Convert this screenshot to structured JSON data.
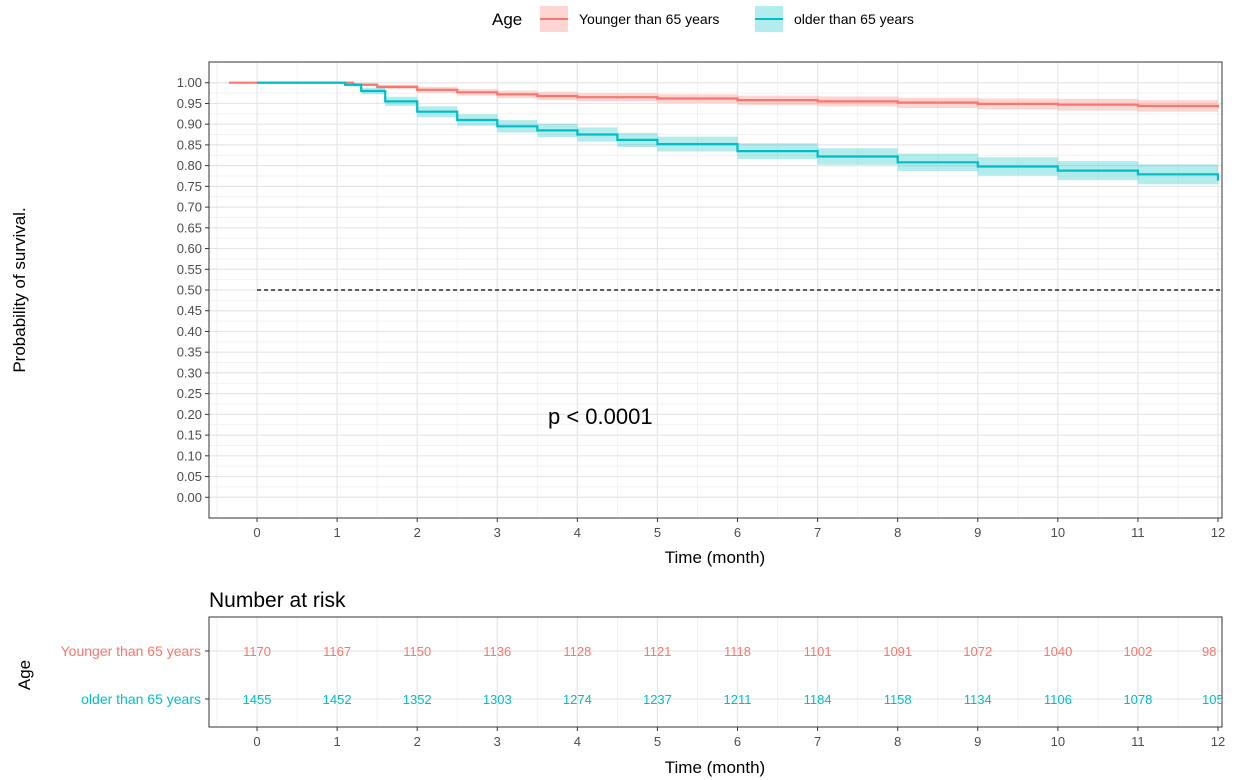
{
  "legend": {
    "title": "Age",
    "items": [
      {
        "label": "Younger than 65 years",
        "color": "#F8766D"
      },
      {
        "label": "older than 65 years",
        "color": "#00BFC4"
      }
    ]
  },
  "p_value": "p < 0.0001",
  "chart_data": [
    {
      "type": "line",
      "subtype": "kaplan-meier",
      "xlabel": "Time (month)",
      "ylabel": "Probability of survival.",
      "xlim": [
        -0.6,
        12.05
      ],
      "ylim": [
        -0.05,
        1.05
      ],
      "x_ticks": [
        "0",
        "1",
        "2",
        "3",
        "4",
        "5",
        "6",
        "7",
        "8",
        "9",
        "10",
        "11",
        "12"
      ],
      "y_ticks": [
        "0.00",
        "0.05",
        "0.10",
        "0.15",
        "0.20",
        "0.25",
        "0.30",
        "0.35",
        "0.40",
        "0.45",
        "0.50",
        "0.55",
        "0.60",
        "0.65",
        "0.70",
        "0.75",
        "0.80",
        "0.85",
        "0.90",
        "0.95",
        "1.00"
      ],
      "grid": true,
      "legend_position": "top",
      "median_line": 0.5,
      "series": [
        {
          "name": "Younger than 65 years",
          "color": "#F8766D",
          "x": [
            -0.35,
            0,
            1,
            1.2,
            1.5,
            2,
            2.5,
            3,
            3.5,
            4,
            5,
            6,
            7,
            8,
            9,
            10,
            11,
            12
          ],
          "y": [
            1.0,
            1.0,
            1.0,
            0.995,
            0.99,
            0.983,
            0.977,
            0.972,
            0.968,
            0.965,
            0.962,
            0.958,
            0.955,
            0.952,
            0.949,
            0.947,
            0.944,
            0.94
          ],
          "ci_lower": [
            1.0,
            1.0,
            1.0,
            0.992,
            0.985,
            0.976,
            0.969,
            0.963,
            0.958,
            0.955,
            0.951,
            0.946,
            0.943,
            0.939,
            0.936,
            0.933,
            0.93,
            0.925
          ],
          "ci_upper": [
            1.0,
            1.0,
            1.0,
            0.999,
            0.995,
            0.99,
            0.985,
            0.981,
            0.978,
            0.975,
            0.972,
            0.969,
            0.967,
            0.964,
            0.962,
            0.961,
            0.958,
            0.955
          ]
        },
        {
          "name": "older than 65 years",
          "color": "#00BFC4",
          "x": [
            0,
            1,
            1.1,
            1.3,
            1.6,
            2,
            2.5,
            3,
            3.5,
            4,
            4.5,
            5,
            6,
            7,
            8,
            9,
            10,
            11,
            12
          ],
          "y": [
            1.0,
            1.0,
            0.995,
            0.98,
            0.955,
            0.93,
            0.91,
            0.895,
            0.885,
            0.875,
            0.862,
            0.852,
            0.835,
            0.822,
            0.808,
            0.798,
            0.788,
            0.779,
            0.764
          ],
          "ci_lower": [
            1.0,
            1.0,
            0.991,
            0.972,
            0.944,
            0.917,
            0.896,
            0.88,
            0.869,
            0.858,
            0.845,
            0.834,
            0.816,
            0.802,
            0.787,
            0.776,
            0.765,
            0.755,
            0.738
          ],
          "ci_upper": [
            1.0,
            1.0,
            0.999,
            0.988,
            0.966,
            0.943,
            0.924,
            0.91,
            0.901,
            0.892,
            0.879,
            0.87,
            0.854,
            0.842,
            0.829,
            0.82,
            0.811,
            0.803,
            0.79
          ]
        }
      ]
    },
    {
      "type": "table",
      "title": "Number at risk",
      "ylabel": "Age",
      "xlabel": "Time (month)",
      "x_ticks": [
        "0",
        "1",
        "2",
        "3",
        "4",
        "5",
        "6",
        "7",
        "8",
        "9",
        "10",
        "11",
        "12"
      ],
      "rows": [
        {
          "name": "Younger than 65 years",
          "color": "#F8766D",
          "values": [
            "1170",
            "1167",
            "1150",
            "1136",
            "1128",
            "1121",
            "1118",
            "1101",
            "1091",
            "1072",
            "1040",
            "1002",
            "98"
          ]
        },
        {
          "name": "older than 65 years",
          "color": "#00BFC4",
          "values": [
            "1455",
            "1452",
            "1352",
            "1303",
            "1274",
            "1237",
            "1211",
            "1184",
            "1158",
            "1134",
            "1106",
            "1078",
            "105"
          ]
        }
      ]
    }
  ]
}
